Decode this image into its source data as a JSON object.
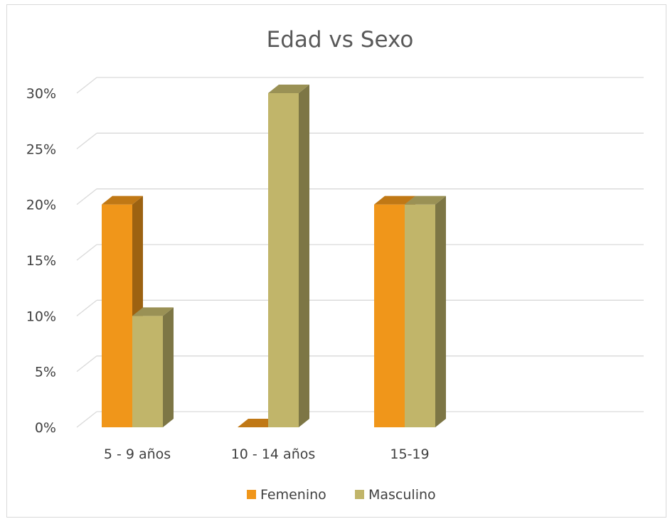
{
  "chart_data": {
    "type": "bar",
    "title": "Edad vs Sexo",
    "xlabel": "",
    "ylabel": "",
    "categories": [
      "5 - 9 años",
      "10 - 14 años",
      "15-19"
    ],
    "series": [
      {
        "name": "Femenino",
        "values": [
          20,
          0,
          20
        ],
        "color": "#f0961a"
      },
      {
        "name": "Masculino",
        "values": [
          10,
          30,
          20
        ],
        "color": "#c1b56a"
      }
    ],
    "ylim": [
      0,
      30
    ],
    "yticks": [
      0,
      5,
      10,
      15,
      20,
      25,
      30
    ],
    "y_tick_labels": [
      "0%",
      "5%",
      "10%",
      "15%",
      "20%",
      "25%",
      "30%"
    ],
    "grid": true,
    "legend_position": "bottom",
    "style": "3d-clustered-column"
  }
}
